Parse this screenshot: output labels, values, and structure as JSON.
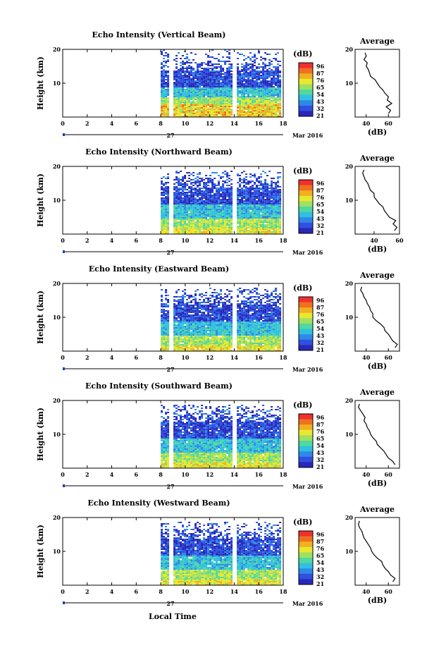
{
  "figure": {
    "xlabel": "Local Time",
    "date_label": "27",
    "month_label": "Mar 2016"
  },
  "colorbar": {
    "unit": "(dB)",
    "ticks": [
      "96",
      "87",
      "76",
      "65",
      "54",
      "43",
      "32",
      "21"
    ],
    "colors": [
      "#f03030",
      "#f07020",
      "#f0b020",
      "#e8e830",
      "#a0e060",
      "#50d8a0",
      "#30c0e0",
      "#3088e8",
      "#3050e0",
      "#2828b8"
    ]
  },
  "chart_data": [
    {
      "type": "heatmap",
      "title": "Echo Intensity (Vertical Beam)",
      "ylabel": "Height (km)",
      "xlim": [
        0,
        18
      ],
      "ylim": [
        0,
        20
      ],
      "x_ticks": [
        "0",
        "2",
        "4",
        "6",
        "8",
        "10",
        "12",
        "14",
        "16",
        "18"
      ],
      "y_ticks": [
        "10",
        "20"
      ],
      "data_start_hour": 8.0,
      "data_end_hour": 17.7,
      "gaps_hours": [
        [
          8.6,
          9.0
        ],
        [
          13.7,
          14.1
        ]
      ],
      "profile": {
        "title": "Average",
        "xlabel": "(dB)",
        "xlim": [
          30,
          70
        ],
        "x_ticks": [
          "40",
          "60"
        ],
        "y_ticks": [
          "10",
          "20"
        ],
        "heights_km": [
          1,
          2,
          3,
          4,
          5,
          6,
          7,
          8,
          9,
          10,
          11,
          12,
          13,
          14,
          15,
          16,
          17,
          18,
          19
        ],
        "values_db": [
          60,
          62,
          58,
          63,
          59,
          60,
          57,
          55,
          52,
          50,
          48,
          44,
          43,
          42,
          40,
          41,
          38,
          40,
          39
        ]
      }
    },
    {
      "type": "heatmap",
      "title": "Echo Intensity (Northward Beam)",
      "ylabel": "Height (km)",
      "xlim": [
        0,
        18
      ],
      "ylim": [
        0,
        20
      ],
      "x_ticks": [
        "0",
        "2",
        "4",
        "6",
        "8",
        "10",
        "12",
        "14",
        "16",
        "18"
      ],
      "y_ticks": [
        "10",
        "20"
      ],
      "data_start_hour": 8.0,
      "data_end_hour": 17.7,
      "gaps_hours": [
        [
          8.6,
          9.0
        ],
        [
          13.7,
          14.1
        ]
      ],
      "profile": {
        "title": "Average",
        "xlabel": "(dB)",
        "xlim": [
          25,
          60
        ],
        "x_ticks": [
          "40",
          "60"
        ],
        "y_ticks": [
          "10",
          "20"
        ],
        "heights_km": [
          1,
          2,
          3,
          4,
          5,
          6,
          7,
          8,
          9,
          10,
          11,
          12,
          13,
          14,
          15,
          16,
          17,
          18,
          19
        ],
        "values_db": [
          56,
          58,
          55,
          57,
          52,
          50,
          48,
          47,
          44,
          42,
          40,
          40,
          37,
          36,
          35,
          33,
          32,
          31,
          32
        ]
      }
    },
    {
      "type": "heatmap",
      "title": "Echo Intensity (Eastward Beam)",
      "ylabel": "Height (km)",
      "xlim": [
        0,
        18
      ],
      "ylim": [
        0,
        20
      ],
      "x_ticks": [
        "0",
        "2",
        "4",
        "6",
        "8",
        "10",
        "12",
        "14",
        "16",
        "18"
      ],
      "y_ticks": [
        "10",
        "20"
      ],
      "data_start_hour": 8.0,
      "data_end_hour": 17.7,
      "gaps_hours": [
        [
          8.6,
          9.0
        ],
        [
          13.7,
          14.1
        ]
      ],
      "profile": {
        "title": "Average",
        "xlabel": "(dB)",
        "xlim": [
          30,
          70
        ],
        "x_ticks": [
          "40",
          "60"
        ],
        "y_ticks": [
          "10",
          "20"
        ],
        "heights_km": [
          1,
          2,
          3,
          4,
          5,
          6,
          7,
          8,
          9,
          10,
          11,
          12,
          13,
          14,
          15,
          16,
          17,
          18,
          19
        ],
        "values_db": [
          66,
          68,
          64,
          62,
          60,
          57,
          56,
          53,
          49,
          46,
          46,
          44,
          43,
          41,
          40,
          38,
          37,
          35,
          36
        ]
      }
    },
    {
      "type": "heatmap",
      "title": "Echo Intensity (Southward Beam)",
      "ylabel": "Height (km)",
      "xlim": [
        0,
        18
      ],
      "ylim": [
        0,
        20
      ],
      "x_ticks": [
        "0",
        "2",
        "4",
        "6",
        "8",
        "10",
        "12",
        "14",
        "16",
        "18"
      ],
      "y_ticks": [
        "10",
        "20"
      ],
      "data_start_hour": 8.0,
      "data_end_hour": 17.7,
      "gaps_hours": [
        [
          8.6,
          9.0
        ],
        [
          13.7,
          14.1
        ]
      ],
      "profile": {
        "title": "Average",
        "xlabel": "(dB)",
        "xlim": [
          30,
          70
        ],
        "x_ticks": [
          "40",
          "60"
        ],
        "y_ticks": [
          "10",
          "20"
        ],
        "heights_km": [
          1,
          2,
          3,
          4,
          5,
          6,
          7,
          8,
          9,
          10,
          11,
          12,
          13,
          14,
          15,
          16,
          17,
          18,
          19
        ],
        "values_db": [
          66,
          64,
          60,
          58,
          56,
          53,
          50,
          49,
          46,
          44,
          43,
          41,
          40,
          38,
          39,
          37,
          35,
          33,
          34
        ]
      }
    },
    {
      "type": "heatmap",
      "title": "Echo Intensity (Westward Beam)",
      "ylabel": "Height (km)",
      "xlim": [
        0,
        18
      ],
      "ylim": [
        0,
        20
      ],
      "x_ticks": [
        "0",
        "2",
        "4",
        "6",
        "8",
        "10",
        "12",
        "14",
        "16",
        "18"
      ],
      "y_ticks": [
        "10",
        "20"
      ],
      "data_start_hour": 8.0,
      "data_end_hour": 17.7,
      "gaps_hours": [
        [
          8.6,
          9.0
        ],
        [
          13.7,
          14.1
        ]
      ],
      "profile": {
        "title": "Average",
        "xlabel": "(dB)",
        "xlim": [
          30,
          70
        ],
        "x_ticks": [
          "40",
          "60"
        ],
        "y_ticks": [
          "10",
          "20"
        ],
        "heights_km": [
          1,
          2,
          3,
          4,
          5,
          6,
          7,
          8,
          9,
          10,
          11,
          12,
          13,
          14,
          15,
          16,
          17,
          18,
          19
        ],
        "values_db": [
          64,
          66,
          62,
          60,
          57,
          55,
          54,
          50,
          47,
          45,
          44,
          42,
          40,
          38,
          37,
          36,
          34,
          33,
          34
        ]
      }
    }
  ]
}
